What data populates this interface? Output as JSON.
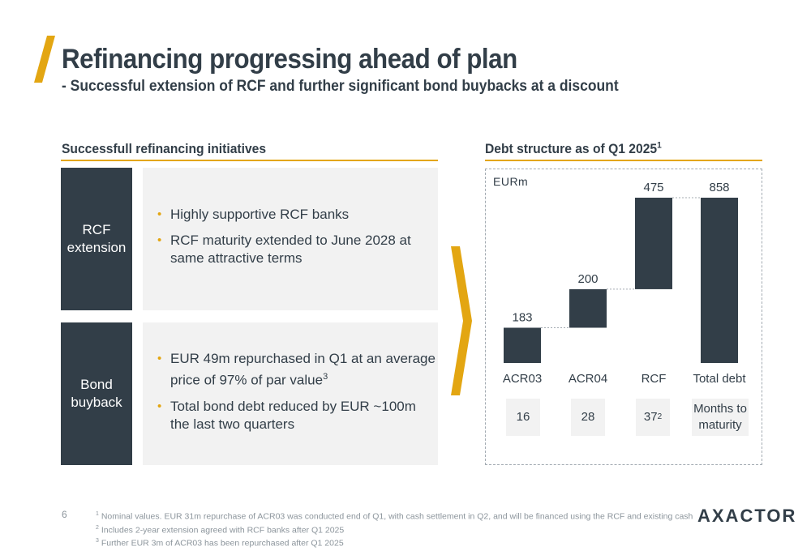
{
  "title": "Refinancing progressing ahead of plan",
  "subtitle": "- Successful extension of RCF and further significant bond buybacks at a discount",
  "left_section": {
    "heading": "Successfull refinancing initiatives",
    "blocks": [
      {
        "label": "RCF extension",
        "bullets": [
          "Highly supportive RCF banks",
          "RCF maturity extended to June 2028 at same attractive terms"
        ]
      },
      {
        "label": "Bond buyback",
        "bullets": [
          "EUR 49m repurchased in Q1 at an average price of 97% of par value",
          "Total bond debt reduced by EUR ~100m the last two quarters"
        ],
        "bullet1_sup": "3"
      }
    ]
  },
  "right_section": {
    "heading": "Debt structure as of Q1 2025",
    "heading_sup": "1",
    "unit": "EURm"
  },
  "chart_data": {
    "type": "waterfall",
    "categories": [
      "ACR03",
      "ACR04",
      "RCF",
      "Total debt"
    ],
    "increments": [
      183,
      200,
      475
    ],
    "total": 858,
    "value_labels": [
      "183",
      "200",
      "475",
      "858"
    ],
    "ylabel": "EURm",
    "colors": {
      "bar": "#323e48",
      "connector": "#a3abb2"
    }
  },
  "months": {
    "values": [
      "16",
      "28",
      "37"
    ],
    "rcf_sup": "2",
    "label": "Months to maturity"
  },
  "footer": {
    "page_number": "6",
    "notes": [
      {
        "sup": "1",
        "text": " Nominal values. EUR 31m repurchase of ACR03 was conducted end of Q1, with cash settlement in Q2, and will be financed using the RCF and existing cash"
      },
      {
        "sup": "2",
        "text": " Includes 2-year extension agreed with RCF banks after Q1 2025"
      },
      {
        "sup": "3",
        "text": " Further EUR 3m of ACR03 has been repurchased after Q1 2025"
      }
    ],
    "logo": "AXACTOR"
  },
  "colors": {
    "accent": "#e3a612",
    "dark": "#323e48",
    "light_bg": "#f2f2f2"
  }
}
